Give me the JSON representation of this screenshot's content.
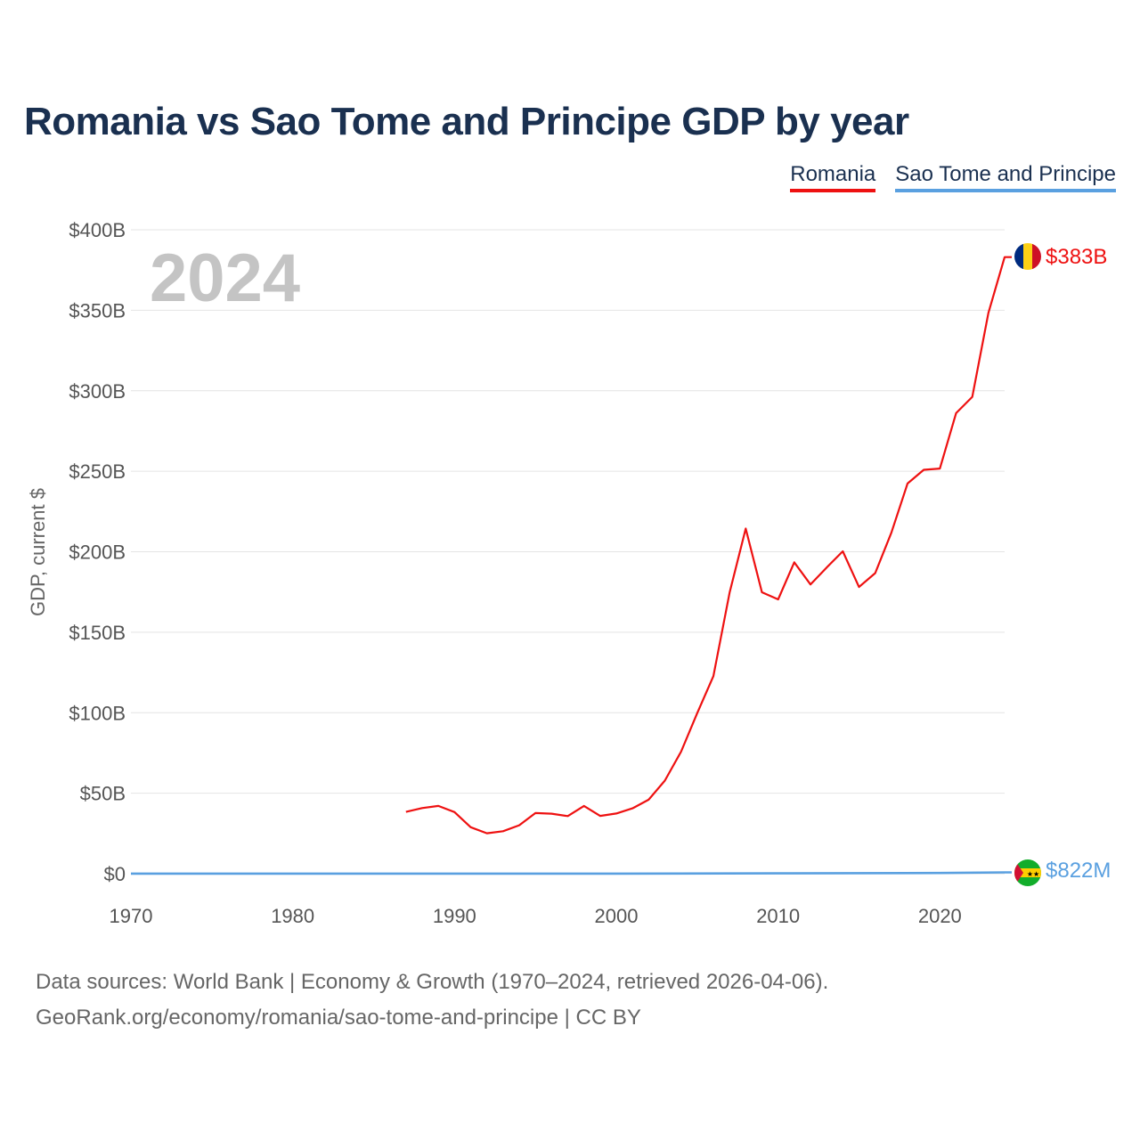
{
  "chart_data": {
    "type": "line",
    "title": "Romania vs Sao Tome and Principe GDP by year",
    "ylabel": "GDP, current $",
    "xlabel": "",
    "xlim": [
      1970,
      2025
    ],
    "ylim": [
      0,
      400
    ],
    "y_unit": "billion USD",
    "grid": true,
    "legend_position": "top-right",
    "year_label": "2024",
    "x_ticks": [
      1970,
      1980,
      1990,
      2000,
      2010,
      2020
    ],
    "x_tick_labels": [
      "1970",
      "1980",
      "1990",
      "2000",
      "2010",
      "2020"
    ],
    "y_ticks": [
      0,
      50,
      100,
      150,
      200,
      250,
      300,
      350,
      400
    ],
    "y_tick_labels": [
      "$0",
      "$50B",
      "$100B",
      "$150B",
      "$200B",
      "$250B",
      "$300B",
      "$350B",
      "$400B"
    ],
    "series": [
      {
        "name": "Romania",
        "color": "#ee1111",
        "end_label": "$383B",
        "flag": "romania-flag",
        "x": [
          1987,
          1988,
          1989,
          1990,
          1991,
          1992,
          1993,
          1994,
          1995,
          1996,
          1997,
          1998,
          1999,
          2000,
          2001,
          2002,
          2003,
          2004,
          2005,
          2006,
          2007,
          2008,
          2009,
          2010,
          2011,
          2012,
          2013,
          2014,
          2015,
          2016,
          2017,
          2018,
          2019,
          2020,
          2021,
          2022,
          2023,
          2024
        ],
        "values": [
          38.4,
          40.8,
          42.1,
          38.3,
          28.9,
          25.1,
          26.4,
          30.1,
          37.7,
          37.3,
          35.8,
          42.1,
          35.9,
          37.4,
          40.6,
          46.0,
          57.8,
          75.8,
          99.7,
          122.7,
          174.6,
          214.4,
          174.8,
          170.4,
          193.4,
          179.7,
          190.2,
          200.3,
          178.1,
          186.7,
          211.8,
          242.4,
          250.9,
          251.7,
          286.1,
          296.2,
          348.4,
          383.0
        ]
      },
      {
        "name": "Sao Tome and Principe",
        "color": "#5aa0e0",
        "end_label": "$822M",
        "flag": "sao-tome-flag",
        "x": [
          1970,
          1980,
          1990,
          2000,
          2010,
          2020,
          2024
        ],
        "values": [
          0.03,
          0.05,
          0.06,
          0.08,
          0.2,
          0.47,
          0.822
        ]
      }
    ]
  },
  "source_line_1": "Data sources: World Bank | Economy & Growth (1970–2024, retrieved 2026-04-06).",
  "source_line_2": "GeoRank.org/economy/romania/sao-tome-and-principe | CC BY"
}
